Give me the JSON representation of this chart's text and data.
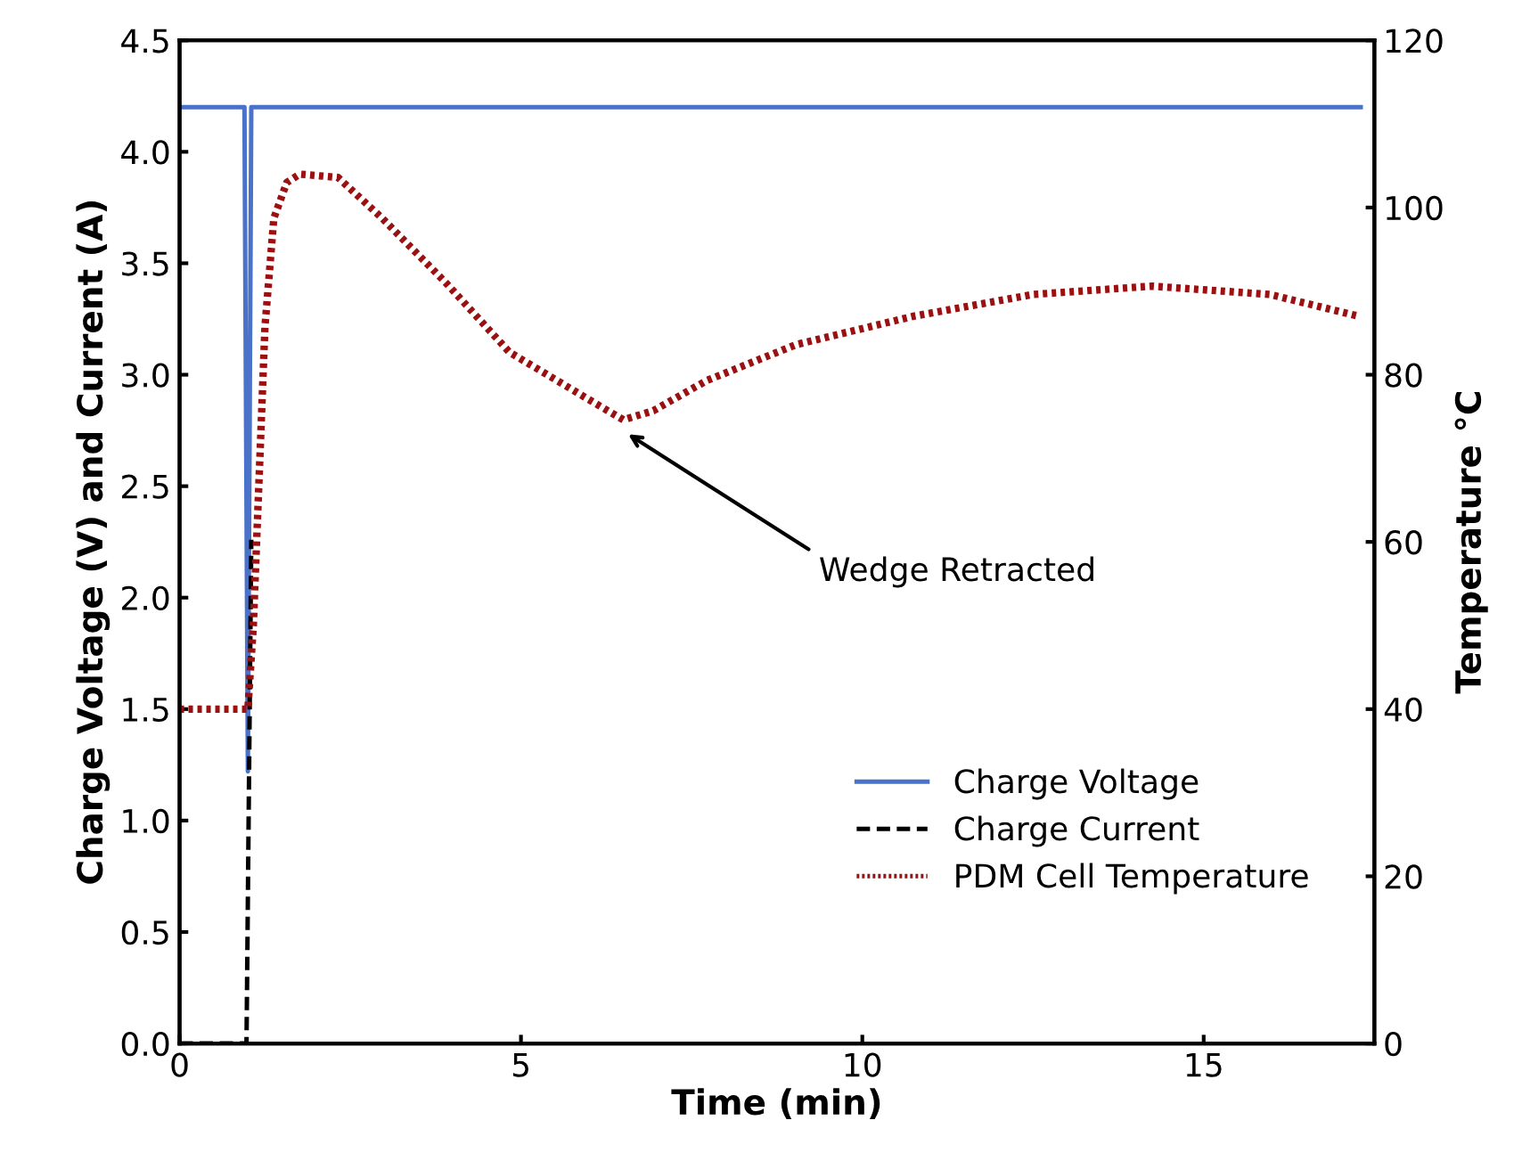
{
  "chart_data": {
    "type": "line",
    "xlabel": "Time (min)",
    "ylabel": "Charge Voltage (V) and Current (A)",
    "y2label": "Temperature °C",
    "xlim": [
      0,
      17.5
    ],
    "xticks": [
      0,
      5,
      10,
      15
    ],
    "ylim": [
      0,
      4.5
    ],
    "yticks": [
      {
        "value": 0,
        "label": "0.0"
      },
      0.5,
      {
        "value": 1,
        "label": "1.0"
      },
      1.5,
      {
        "value": 2,
        "label": "2.0"
      },
      2.5,
      {
        "value": 3,
        "label": "3.0"
      },
      3.5,
      {
        "value": 4,
        "label": "4.0"
      },
      4.5
    ],
    "y2lim": [
      0,
      120
    ],
    "y2ticks": [
      0,
      20,
      40,
      60,
      80,
      100,
      120
    ],
    "grid": false,
    "legend": "lower right",
    "series": [
      {
        "name": "Charge Voltage",
        "color": "#4a72c8",
        "line_style": "solid",
        "x": [
          0,
          0.95,
          1.0,
          1.05,
          17.3
        ],
        "values": [
          4.2,
          4.2,
          1.22,
          4.2,
          4.2
        ]
      },
      {
        "name": "Charge Current",
        "color": "#000000",
        "line_style": "dashed",
        "x": [
          0,
          0.98,
          1.05
        ],
        "values": [
          0,
          0,
          2.26
        ]
      },
      {
        "name": "PDM Cell Temperature",
        "color": "#9b1111",
        "line_style": "dotted",
        "axis": "y2",
        "x": [
          0,
          1.0,
          1.08,
          1.16,
          1.25,
          1.38,
          1.57,
          1.76,
          2.32,
          2.97,
          3.9,
          4.83,
          5.53,
          6.0,
          6.5,
          6.94,
          7.72,
          9.03,
          10.75,
          12.5,
          14.24,
          15.97,
          17.27
        ],
        "values": [
          40,
          40,
          50,
          66.7,
          85.7,
          98.7,
          103,
          104,
          103.6,
          98.7,
          91,
          82.7,
          79.3,
          77,
          74.6,
          75.7,
          79.3,
          83.6,
          87,
          89.6,
          90.6,
          89.6,
          87
        ]
      }
    ],
    "annotations": [
      "Wedge Retracted"
    ]
  }
}
